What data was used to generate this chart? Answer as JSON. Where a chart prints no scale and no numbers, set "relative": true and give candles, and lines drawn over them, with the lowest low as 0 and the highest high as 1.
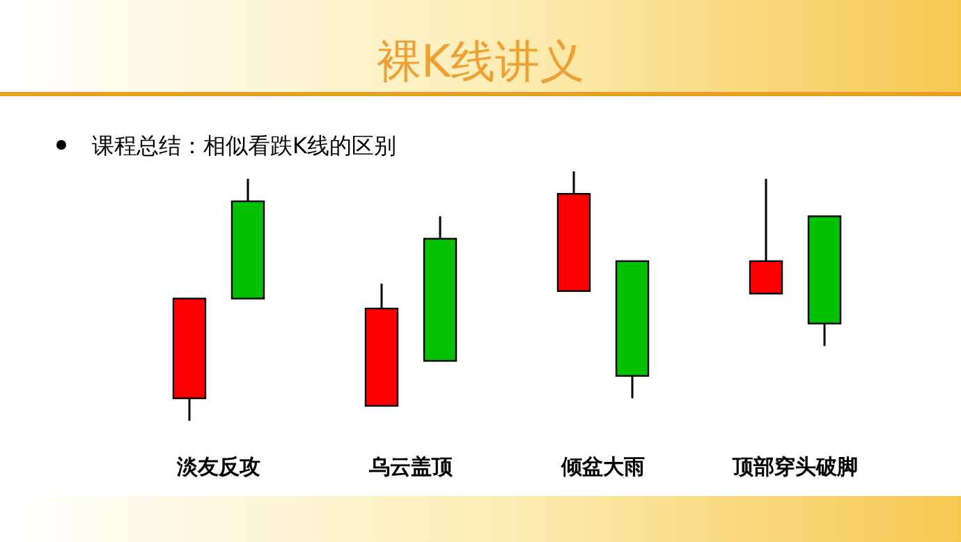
{
  "chart_data": {
    "type": "candlestick",
    "title": "裸K线讲义",
    "subtitle": "课程总结：相似看跌K线的区别",
    "relative": true,
    "categories": [
      "淡友反攻",
      "乌云盖顶",
      "倾盆大雨",
      "顶部穿头破脚"
    ],
    "series": [
      {
        "color": "#ff0000",
        "ohlc": [
          [
            0.09,
            0.49,
            0,
            0.49
          ],
          [
            0.06,
            0.55,
            0.06,
            0.45
          ],
          [
            0.52,
            1,
            0.52,
            0.91
          ],
          [
            0.51,
            0.97,
            0.51,
            0.64
          ]
        ]
      },
      {
        "color": "#00c000",
        "ohlc": [
          [
            0.88,
            0.97,
            0.49,
            0.49
          ],
          [
            0.73,
            0.82,
            0.24,
            0.24
          ],
          [
            0.64,
            0.64,
            0.09,
            0.18
          ],
          [
            0.82,
            0.82,
            0.3,
            0.39
          ]
        ]
      }
    ]
  }
}
